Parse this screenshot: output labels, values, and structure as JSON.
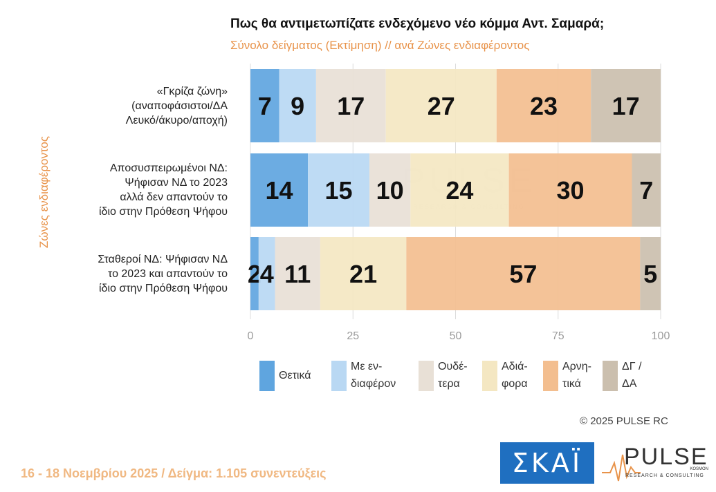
{
  "chart_data": {
    "type": "bar",
    "orientation": "horizontal",
    "stacked": true,
    "title": "Πως θα αντιμετωπίζατε ενδεχόμενο νέο κόμμα Αντ. Σαμαρά;",
    "subtitle": "Σύνολο δείγματος   (Εκτίμηση) // ανά Ζώνες ενδιαφέροντος",
    "ylabel": "Ζώνες ενδιαφέροντος",
    "xlim": [
      0,
      100
    ],
    "xticks": [
      "0",
      "25",
      "50",
      "75",
      "100"
    ],
    "grid": true,
    "categories": [
      [
        "«Γκρίζα ζώνη»",
        "(αναποφάσιστοι/ΔΑ",
        "Λευκό/άκυρο/αποχή)"
      ],
      [
        "Αποσυσπειρωμένοι ΝΔ:",
        "Ψήφισαν ΝΔ το 2023",
        "αλλά δεν απαντούν το",
        "ίδιο στην Πρόθεση Ψήφου"
      ],
      [
        "Σταθεροί ΝΔ: Ψήφισαν ΝΔ",
        "το 2023 και απαντούν το",
        "ίδιο στην Πρόθεση Ψήφου"
      ]
    ],
    "series": [
      {
        "name": "Θετικά",
        "color": "#5fa5df",
        "values": [
          7,
          14,
          2
        ]
      },
      {
        "name": "Με ενδιαφέρον",
        "color": "#b9d8f3",
        "values": [
          9,
          15,
          4
        ]
      },
      {
        "name": "Ουδέτερα",
        "color": "#e8e0d6",
        "values": [
          17,
          10,
          11
        ]
      },
      {
        "name": "Αδιάφορα",
        "color": "#f4e7c2",
        "values": [
          27,
          24,
          21
        ]
      },
      {
        "name": "Αρνητικά",
        "color": "#f3be8f",
        "values": [
          23,
          30,
          57
        ]
      },
      {
        "name": "ΔΓ / ΔΑ",
        "color": "#cbbfae",
        "values": [
          17,
          7,
          5
        ]
      }
    ],
    "legend": {
      "placement": "bottom",
      "labels": [
        [
          "Θετικά"
        ],
        [
          "Με εν-",
          "διαφέρον"
        ],
        [
          "Ουδέ-",
          "τερα"
        ],
        [
          "Αδιά-",
          "φορα"
        ],
        [
          "Αρνη-",
          "τικά"
        ],
        [
          "ΔΓ /",
          "ΔΑ"
        ]
      ]
    }
  },
  "watermark": {
    "text": "PULSE",
    "subtext": "RESEARCH & CONSULTING"
  },
  "copyright": "©  2025  PULSE RC",
  "footer": "16 - 18 Νοεμβρίου 2025  /  Δείγμα:  1.105 συνεντεύξεις",
  "logos": {
    "skai": "ΣΚΑΪ",
    "pulse": "PULSE",
    "pulse_sub": "RESEARCH & CONSULTING",
    "pulse_kosmon": "KOSMON"
  }
}
